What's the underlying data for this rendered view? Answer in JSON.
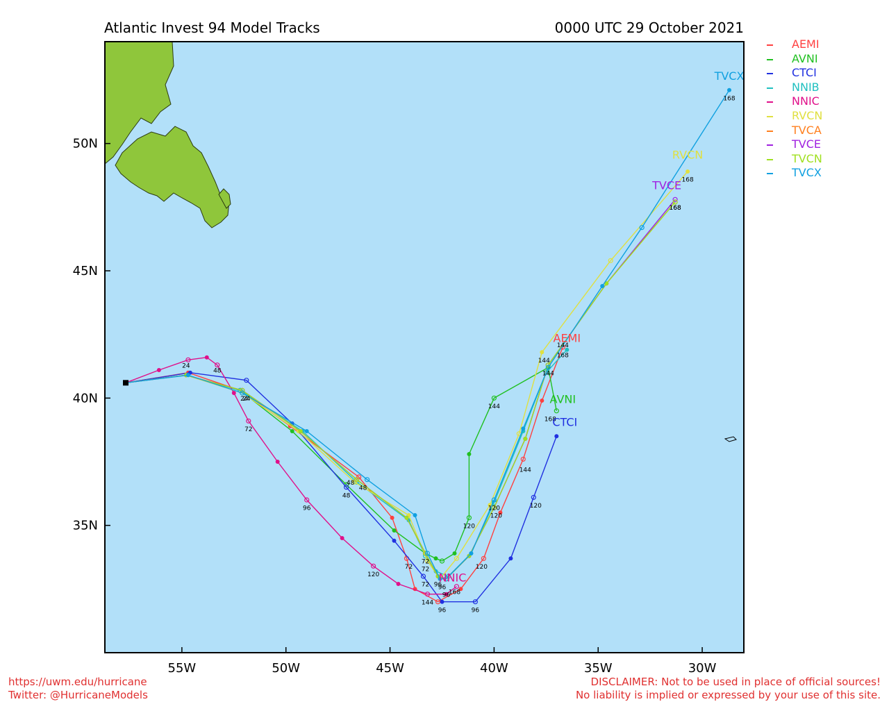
{
  "title_left": "Atlantic Invest 94 Model Tracks",
  "title_right": "0000 UTC 29 October 2021",
  "footer": {
    "url": "https://uwm.edu/hurricane",
    "twitter": "Twitter: @HurricaneModels",
    "disclaimer_1": "DISCLAIMER: Not to be used in place of official sources!",
    "disclaimer_2": "No liability is implied or expressed by your use of this site."
  },
  "colors": {
    "ocean": "#b2e0f9",
    "land": "#8fc63b",
    "frame": "#000000",
    "footer_text": "#e03030"
  },
  "map_extent": {
    "lon_west": -58.7,
    "lon_east": -28.0,
    "lat_south": 30.0,
    "lat_north": 54.0
  },
  "lon_ticks": [
    {
      "lon": -55,
      "label": "55W"
    },
    {
      "lon": -50,
      "label": "50W"
    },
    {
      "lon": -45,
      "label": "45W"
    },
    {
      "lon": -40,
      "label": "40W"
    },
    {
      "lon": -35,
      "label": "35W"
    },
    {
      "lon": -30,
      "label": "30W"
    }
  ],
  "lat_ticks": [
    {
      "lat": 35,
      "label": "35N"
    },
    {
      "lat": 40,
      "label": "40N"
    },
    {
      "lat": 45,
      "label": "45N"
    },
    {
      "lat": 50,
      "label": "50N"
    }
  ],
  "start_point": {
    "lon": -57.7,
    "lat": 40.6
  },
  "models": [
    {
      "name": "AEMI",
      "color": "#ff4040",
      "end_label": "AEMI",
      "track": [
        [
          -57.7,
          40.6
        ],
        [
          -54.7,
          41.0
        ],
        [
          -52.2,
          40.3
        ],
        [
          -49.8,
          38.9
        ],
        [
          -46.5,
          36.9
        ],
        [
          -44.9,
          35.3
        ],
        [
          -44.2,
          33.7
        ],
        [
          -43.8,
          32.5
        ],
        [
          -42.7,
          32.0
        ],
        [
          -41.6,
          32.5
        ],
        [
          -40.5,
          33.7
        ],
        [
          -39.7,
          35.5
        ],
        [
          -38.6,
          37.6
        ],
        [
          -37.7,
          39.9
        ],
        [
          -36.7,
          42.0
        ]
      ],
      "hour_labels": [
        {
          "lon": -44.1,
          "lat": 33.3,
          "text": "72"
        },
        {
          "lon": -38.5,
          "lat": 37.1,
          "text": "144"
        }
      ],
      "label_pos": {
        "lon": -36.5,
        "lat": 42.2
      }
    },
    {
      "name": "AVNI",
      "color": "#20c020",
      "end_label": "AVNI",
      "track": [
        [
          -57.7,
          40.6
        ],
        [
          -54.8,
          40.9
        ],
        [
          -52.2,
          40.3
        ],
        [
          -49.7,
          38.7
        ],
        [
          -47.1,
          36.6
        ],
        [
          -44.8,
          34.8
        ],
        [
          -43.3,
          33.9
        ],
        [
          -42.8,
          33.7
        ],
        [
          -42.5,
          33.6
        ],
        [
          -41.9,
          33.9
        ],
        [
          -41.2,
          35.3
        ],
        [
          -41.2,
          37.8
        ],
        [
          -40.0,
          40.0
        ],
        [
          -37.4,
          41.2
        ],
        [
          -37.0,
          39.5
        ]
      ],
      "hour_labels": [
        {
          "lon": -41.2,
          "lat": 34.9,
          "text": "120"
        },
        {
          "lon": -40.0,
          "lat": 39.6,
          "text": "144"
        },
        {
          "lon": -37.3,
          "lat": 39.1,
          "text": "168"
        }
      ],
      "label_pos": {
        "lon": -36.7,
        "lat": 39.8
      }
    },
    {
      "name": "CTCI",
      "color": "#2030e0",
      "end_label": "CTCI",
      "track": [
        [
          -57.7,
          40.6
        ],
        [
          -54.6,
          41.0
        ],
        [
          -51.9,
          40.7
        ],
        [
          -49.7,
          39.0
        ],
        [
          -47.1,
          36.5
        ],
        [
          -44.8,
          34.4
        ],
        [
          -43.4,
          33.0
        ],
        [
          -42.5,
          32.0
        ],
        [
          -40.9,
          32.0
        ],
        [
          -39.2,
          33.7
        ],
        [
          -38.1,
          36.1
        ],
        [
          -37.0,
          38.5
        ]
      ],
      "hour_labels": [
        {
          "lon": -47.1,
          "lat": 36.1,
          "text": "48"
        },
        {
          "lon": -43.3,
          "lat": 32.6,
          "text": "72"
        },
        {
          "lon": -42.5,
          "lat": 31.6,
          "text": "96"
        },
        {
          "lon": -40.9,
          "lat": 31.6,
          "text": "96"
        },
        {
          "lon": -38.0,
          "lat": 35.7,
          "text": "120"
        }
      ],
      "label_pos": {
        "lon": -36.6,
        "lat": 38.9
      }
    },
    {
      "name": "NNIB",
      "color": "#20c0c0",
      "end_label": "",
      "track": [
        [
          -57.7,
          40.6
        ],
        [
          -54.8,
          40.9
        ],
        [
          -52.2,
          40.3
        ],
        [
          -49.2,
          38.7
        ],
        [
          -46.6,
          36.7
        ],
        [
          -44.1,
          35.2
        ],
        [
          -43.3,
          33.8
        ],
        [
          -42.8,
          33.2
        ],
        [
          -42.2,
          33.0
        ],
        [
          -41.1,
          33.9
        ],
        [
          -40.0,
          35.9
        ],
        [
          -38.6,
          38.7
        ],
        [
          -37.5,
          41.0
        ],
        [
          -36.5,
          41.9
        ]
      ],
      "hour_labels": [],
      "label_pos": null
    },
    {
      "name": "NNIC",
      "color": "#e0108a",
      "end_label": "NNIC",
      "track": [
        [
          -57.7,
          40.6
        ],
        [
          -56.1,
          41.1
        ],
        [
          -54.7,
          41.5
        ],
        [
          -53.8,
          41.6
        ],
        [
          -53.3,
          41.3
        ],
        [
          -52.5,
          40.2
        ],
        [
          -51.8,
          39.1
        ],
        [
          -50.4,
          37.5
        ],
        [
          -49.0,
          36.0
        ],
        [
          -47.3,
          34.5
        ],
        [
          -45.8,
          33.4
        ],
        [
          -44.6,
          32.7
        ],
        [
          -43.2,
          32.3
        ],
        [
          -42.3,
          32.3
        ],
        [
          -41.8,
          32.6
        ]
      ],
      "hour_labels": [
        {
          "lon": -53.3,
          "lat": 41.0,
          "text": "48"
        },
        {
          "lon": -51.8,
          "lat": 38.7,
          "text": "72"
        },
        {
          "lon": -49.0,
          "lat": 35.6,
          "text": "96"
        },
        {
          "lon": -45.8,
          "lat": 33.0,
          "text": "120"
        },
        {
          "lon": -43.2,
          "lat": 31.9,
          "text": "144"
        }
      ],
      "label_pos": {
        "lon": -42.0,
        "lat": 32.8
      }
    },
    {
      "name": "RVCN",
      "color": "#e0e040",
      "end_label": "RVCN",
      "track": [
        [
          -57.7,
          40.6
        ],
        [
          -54.8,
          40.9
        ],
        [
          -52.1,
          40.2
        ],
        [
          -49.4,
          38.7
        ],
        [
          -46.7,
          36.7
        ],
        [
          -44.1,
          35.4
        ],
        [
          -43.2,
          33.6
        ],
        [
          -42.6,
          32.9
        ],
        [
          -41.8,
          33.7
        ],
        [
          -40.2,
          35.8
        ],
        [
          -38.8,
          38.6
        ],
        [
          -37.7,
          41.8
        ],
        [
          -34.4,
          45.4
        ],
        [
          -30.7,
          48.9
        ]
      ],
      "hour_labels": [
        {
          "lon": -37.6,
          "lat": 41.4,
          "text": "144"
        },
        {
          "lon": -30.7,
          "lat": 48.5,
          "text": "168"
        }
      ],
      "label_pos": {
        "lon": -30.7,
        "lat": 49.4
      }
    },
    {
      "name": "TVCA",
      "color": "#ff8020",
      "end_label": "",
      "track": [
        [
          -57.7,
          40.6
        ],
        [
          -54.8,
          40.9
        ],
        [
          -52.1,
          40.3
        ],
        [
          -49.3,
          38.7
        ],
        [
          -46.6,
          36.8
        ],
        [
          -44.2,
          35.3
        ],
        [
          -43.3,
          33.9
        ],
        [
          -42.7,
          33.0
        ],
        [
          -42.3,
          32.9
        ],
        [
          -41.2,
          33.8
        ],
        [
          -40.0,
          35.7
        ],
        [
          -38.5,
          38.4
        ],
        [
          -37.4,
          41.3
        ],
        [
          -34.6,
          44.5
        ],
        [
          -31.3,
          47.7
        ]
      ],
      "hour_labels": [],
      "label_pos": null
    },
    {
      "name": "TVCE",
      "color": "#a020e0",
      "end_label": "TVCE",
      "track": [
        [
          -57.7,
          40.6
        ],
        [
          -54.8,
          40.9
        ],
        [
          -52.1,
          40.3
        ],
        [
          -49.3,
          38.7
        ],
        [
          -46.6,
          36.8
        ],
        [
          -44.2,
          35.3
        ],
        [
          -43.3,
          33.9
        ],
        [
          -42.7,
          33.0
        ],
        [
          -42.3,
          32.9
        ],
        [
          -41.2,
          33.8
        ],
        [
          -40.0,
          35.7
        ],
        [
          -38.5,
          38.4
        ],
        [
          -37.4,
          41.3
        ],
        [
          -34.6,
          44.5
        ],
        [
          -31.3,
          47.8
        ]
      ],
      "hour_labels": [
        {
          "lon": -52.0,
          "lat": 39.9,
          "text": "24"
        },
        {
          "lon": -46.3,
          "lat": 36.4,
          "text": "48"
        },
        {
          "lon": -43.3,
          "lat": 33.5,
          "text": "72"
        },
        {
          "lon": -42.5,
          "lat": 32.5,
          "text": "96"
        },
        {
          "lon": -39.9,
          "lat": 35.3,
          "text": "120"
        },
        {
          "lon": -37.4,
          "lat": 40.9,
          "text": "144"
        },
        {
          "lon": -31.3,
          "lat": 47.4,
          "text": "168"
        }
      ],
      "label_pos": {
        "lon": -31.7,
        "lat": 48.2
      }
    },
    {
      "name": "TVCN",
      "color": "#a0e020",
      "end_label": "",
      "track": [
        [
          -57.7,
          40.6
        ],
        [
          -54.8,
          40.9
        ],
        [
          -52.1,
          40.3
        ],
        [
          -49.3,
          38.7
        ],
        [
          -46.6,
          36.8
        ],
        [
          -44.2,
          35.3
        ],
        [
          -43.3,
          33.9
        ],
        [
          -42.7,
          33.0
        ],
        [
          -42.3,
          32.9
        ],
        [
          -41.2,
          33.8
        ],
        [
          -40.0,
          35.7
        ],
        [
          -38.5,
          38.4
        ],
        [
          -37.4,
          41.3
        ],
        [
          -34.6,
          44.5
        ],
        [
          -31.3,
          47.7
        ]
      ],
      "hour_labels": [],
      "label_pos": null
    },
    {
      "name": "TVCX",
      "color": "#10a0e0",
      "end_label": "TVCX",
      "track": [
        [
          -57.7,
          40.6
        ],
        [
          -54.7,
          40.9
        ],
        [
          -52.1,
          40.2
        ],
        [
          -49.0,
          38.7
        ],
        [
          -46.1,
          36.8
        ],
        [
          -43.8,
          35.4
        ],
        [
          -43.2,
          33.9
        ],
        [
          -42.6,
          32.9
        ],
        [
          -42.3,
          32.9
        ],
        [
          -41.1,
          33.9
        ],
        [
          -40.0,
          36.0
        ],
        [
          -38.6,
          38.8
        ],
        [
          -37.4,
          41.2
        ],
        [
          -34.8,
          44.4
        ],
        [
          -32.9,
          46.7
        ],
        [
          -28.7,
          52.1
        ]
      ],
      "hour_labels": [
        {
          "lon": -28.7,
          "lat": 51.7,
          "text": "168"
        },
        {
          "lon": -36.7,
          "lat": 41.6,
          "text": "168"
        },
        {
          "lon": -36.7,
          "lat": 42.0,
          "text": "144"
        }
      ],
      "label_pos": {
        "lon": -28.7,
        "lat": 52.5
      }
    }
  ],
  "hour_labels_common": [
    {
      "lon": -54.8,
      "lat": 41.2,
      "text": "24"
    },
    {
      "lon": -51.9,
      "lat": 39.9,
      "text": "24"
    },
    {
      "lon": -43.3,
      "lat": 33.2,
      "text": "72"
    },
    {
      "lon": -42.7,
      "lat": 32.6,
      "text": "96"
    },
    {
      "lon": -42.3,
      "lat": 32.2,
      "text": "96"
    },
    {
      "lon": -41.9,
      "lat": 32.3,
      "text": "168"
    },
    {
      "lon": -40.0,
      "lat": 35.6,
      "text": "120"
    },
    {
      "lon": -40.6,
      "lat": 33.3,
      "text": "120"
    },
    {
      "lon": -31.3,
      "lat": 47.4,
      "text": "168"
    },
    {
      "lon": -46.9,
      "lat": 36.6,
      "text": "48"
    }
  ],
  "legend": [
    "AEMI",
    "AVNI",
    "CTCI",
    "NNIB",
    "NNIC",
    "RVCN",
    "TVCA",
    "TVCE",
    "TVCN",
    "TVCX"
  ]
}
